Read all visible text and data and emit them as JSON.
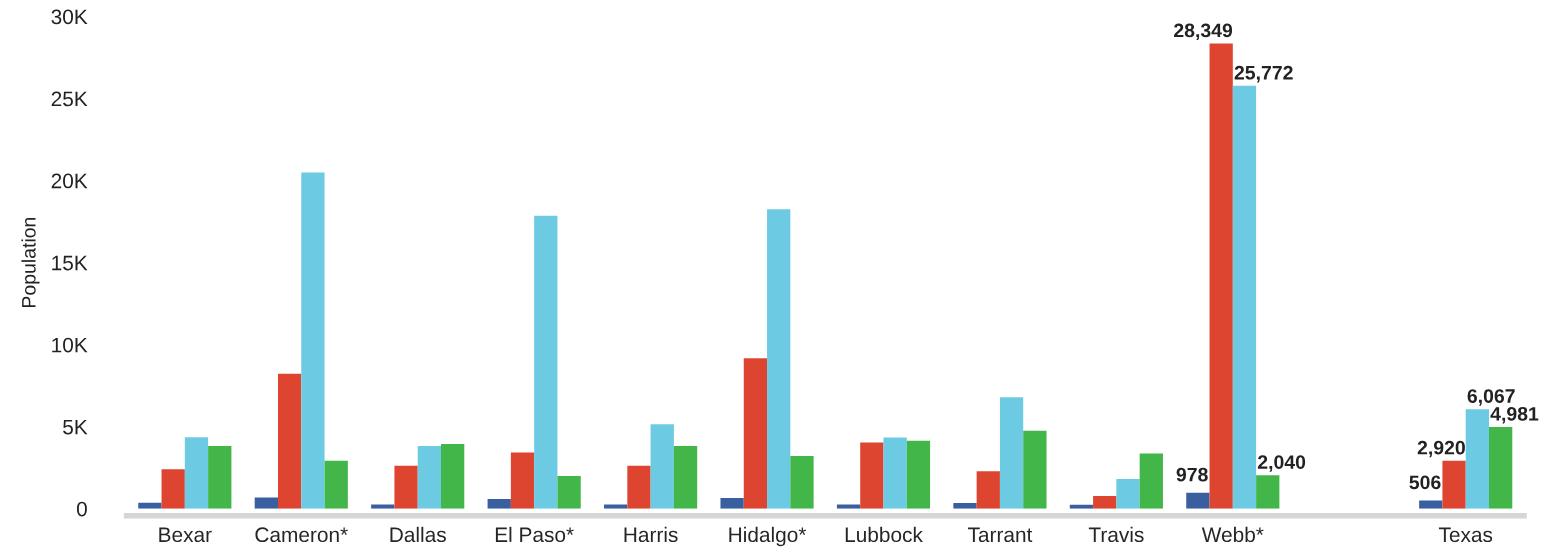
{
  "chart_data": {
    "type": "bar",
    "ylabel": "Population",
    "categories": [
      "Bexar",
      "Cameron*",
      "Dallas",
      "El Paso*",
      "Harris",
      "Hidalgo*",
      "Lubbock",
      "Tarrant",
      "Travis",
      "Webb*",
      null,
      "Texas"
    ],
    "ylim": [
      0,
      30000
    ],
    "yticks": [
      0,
      {
        "value": 5000,
        "label": "5K"
      },
      {
        "value": 10000,
        "label": "10K"
      },
      {
        "value": 15000,
        "label": "15K"
      },
      {
        "value": 20000,
        "label": "20K"
      },
      {
        "value": 25000,
        "label": "25K"
      },
      {
        "value": 30000,
        "label": "30K"
      }
    ],
    "grid": false,
    "legend": false,
    "series": [
      {
        "color": "#3a5fa0",
        "values": [
          370,
          680,
          260,
          590,
          260,
          650,
          260,
          350,
          240,
          978,
          null,
          506
        ],
        "value_labels": [
          null,
          null,
          null,
          null,
          null,
          null,
          null,
          null,
          null,
          "978",
          null,
          "506"
        ]
      },
      {
        "color": "#de4530",
        "values": [
          2400,
          8230,
          2620,
          3430,
          2620,
          9170,
          4030,
          2290,
          780,
          28349,
          null,
          2920
        ],
        "value_labels": [
          null,
          null,
          null,
          null,
          null,
          null,
          null,
          null,
          null,
          "28,349",
          null,
          "2,920"
        ]
      },
      {
        "color": "#6ccbe3",
        "values": [
          4360,
          20500,
          3830,
          17850,
          5150,
          18250,
          4340,
          6790,
          1810,
          25772,
          null,
          6067
        ],
        "value_labels": [
          null,
          null,
          null,
          null,
          null,
          null,
          null,
          null,
          null,
          "25,772",
          null,
          "6,067"
        ]
      },
      {
        "color": "#43b649",
        "values": [
          3830,
          2930,
          3940,
          1990,
          3830,
          3220,
          4140,
          4760,
          3360,
          2040,
          null,
          4981
        ],
        "value_labels": [
          null,
          null,
          null,
          null,
          null,
          null,
          null,
          null,
          null,
          "2,040",
          null,
          "4,981"
        ]
      }
    ]
  }
}
